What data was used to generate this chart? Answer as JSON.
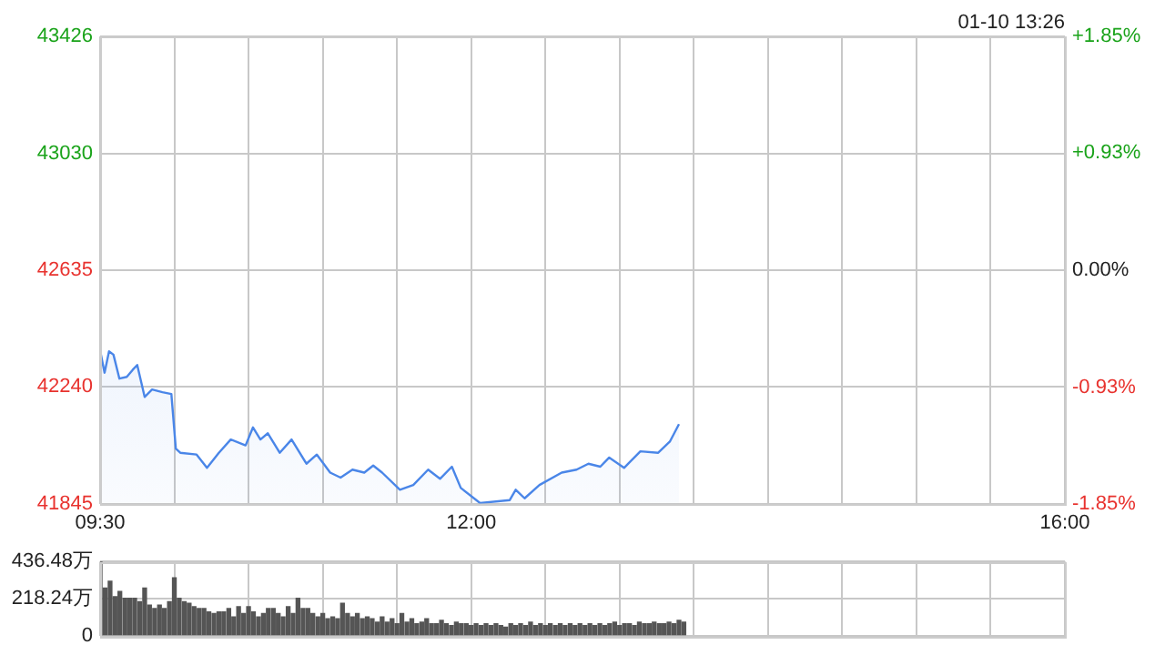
{
  "chart_data": [
    {
      "type": "area",
      "annotations": [
        "01-10 13:26"
      ],
      "x": [
        9.5,
        9.53,
        9.56,
        9.59,
        9.63,
        9.68,
        9.72,
        9.75,
        9.8,
        9.85,
        9.92,
        9.98,
        10.01,
        10.04,
        10.15,
        10.22,
        10.3,
        10.38,
        10.48,
        10.53,
        10.58,
        10.63,
        10.71,
        10.79,
        10.89,
        10.96,
        11.05,
        11.12,
        11.2,
        11.28,
        11.34,
        11.4,
        11.52,
        11.61,
        11.71,
        11.79,
        11.87,
        11.93,
        12.06,
        12.26,
        12.3,
        12.36,
        12.46,
        12.61,
        12.71,
        12.79,
        12.87,
        12.93,
        13.03,
        13.14,
        13.26,
        13.34,
        13.4
      ],
      "series": [
        {
          "color": "#4a86e8",
          "values": [
            42363,
            42288,
            42360,
            42349,
            42268,
            42274,
            42298,
            42314,
            42206,
            42231,
            42222,
            42216,
            42031,
            42017,
            42011,
            41966,
            42017,
            42062,
            42042,
            42103,
            42062,
            42083,
            42017,
            42062,
            41980,
            42011,
            41950,
            41933,
            41960,
            41950,
            41974,
            41950,
            41892,
            41908,
            41960,
            41929,
            41970,
            41898,
            41847,
            41857,
            41892,
            41863,
            41908,
            41950,
            41960,
            41980,
            41970,
            42001,
            41966,
            42022,
            42017,
            42056,
            42114
          ]
        }
      ],
      "xlim": [
        9.5,
        16
      ],
      "xticks": [
        {
          "value": 9.5,
          "label": "09:30"
        },
        {
          "value": 10,
          "label": null
        },
        {
          "value": 10.5,
          "label": null
        },
        {
          "value": 11,
          "label": null
        },
        {
          "value": 11.5,
          "label": null
        },
        {
          "value": 12,
          "label": "12:00"
        },
        {
          "value": 12.5,
          "label": null
        },
        {
          "value": 13,
          "label": null
        },
        {
          "value": 13.5,
          "label": null
        },
        {
          "value": 14,
          "label": null
        },
        {
          "value": 14.5,
          "label": null
        },
        {
          "value": 15,
          "label": null
        },
        {
          "value": 15.5,
          "label": null
        },
        {
          "value": 16,
          "label": "16:00"
        }
      ],
      "ylim": [
        41845,
        43426
      ],
      "yticks": [
        41845,
        42240,
        42635,
        43030,
        43426
      ],
      "y2lim": [
        -1.85,
        1.85
      ],
      "y2ticks": [
        {
          "value": -1.85,
          "label": "-1.85%"
        },
        {
          "value": -0.93,
          "label": "-0.93%"
        },
        {
          "value": 0,
          "label": "0.00%"
        },
        {
          "value": 0.93,
          "label": "+0.93%"
        },
        {
          "value": 1.85,
          "label": "+1.85%"
        }
      ],
      "grid": true,
      "legend": false,
      "marker": "none",
      "line_style": "solid"
    },
    {
      "type": "bar",
      "color": "#555555",
      "tick_labels": "y",
      "xlim": [
        9.5,
        16
      ],
      "xticks": [
        {
          "value": 9.5,
          "label": null
        },
        {
          "value": 10,
          "label": null
        },
        {
          "value": 10.5,
          "label": null
        },
        {
          "value": 11,
          "label": null
        },
        {
          "value": 11.5,
          "label": null
        },
        {
          "value": 12,
          "label": null
        },
        {
          "value": 12.5,
          "label": null
        },
        {
          "value": 13,
          "label": null
        },
        {
          "value": 13.5,
          "label": null
        },
        {
          "value": 14,
          "label": null
        },
        {
          "value": 14.5,
          "label": null
        },
        {
          "value": 15,
          "label": null
        },
        {
          "value": 15.5,
          "label": null
        },
        {
          "value": 16,
          "label": null
        }
      ],
      "ylim": [
        0,
        436.48
      ],
      "yticks": [
        0,
        {
          "value": 218.24,
          "label": "218.24万"
        },
        {
          "value": 436.48,
          "label": "436.48万"
        }
      ],
      "grid": true,
      "legend": false,
      "x": [
        9.5,
        9.533,
        9.567,
        9.6,
        9.633,
        9.667,
        9.7,
        9.733,
        9.767,
        9.8,
        9.833,
        9.867,
        9.9,
        9.933,
        9.967,
        10,
        10.033,
        10.067,
        10.1,
        10.133,
        10.167,
        10.2,
        10.233,
        10.267,
        10.3,
        10.333,
        10.367,
        10.4,
        10.433,
        10.467,
        10.5,
        10.533,
        10.567,
        10.6,
        10.633,
        10.667,
        10.7,
        10.733,
        10.767,
        10.8,
        10.833,
        10.867,
        10.9,
        10.933,
        10.967,
        11,
        11.033,
        11.067,
        11.1,
        11.133,
        11.167,
        11.2,
        11.233,
        11.267,
        11.3,
        11.333,
        11.367,
        11.4,
        11.433,
        11.467,
        11.5,
        11.533,
        11.567,
        11.6,
        11.633,
        11.667,
        11.7,
        11.733,
        11.767,
        11.8,
        11.833,
        11.867,
        11.9,
        11.933,
        11.967,
        12,
        12.033,
        12.067,
        12.1,
        12.133,
        12.167,
        12.2,
        12.233,
        12.267,
        12.3,
        12.333,
        12.367,
        12.4,
        12.433,
        12.467,
        12.5,
        12.533,
        12.567,
        12.6,
        12.633,
        12.667,
        12.7,
        12.733,
        12.767,
        12.8,
        12.833,
        12.867,
        12.9,
        12.933,
        12.967,
        13,
        13.033,
        13.067,
        13.1,
        13.133,
        13.167,
        13.2,
        13.233,
        13.267,
        13.3,
        13.333,
        13.367,
        13.4,
        13.433
      ],
      "values": [
        435,
        280,
        320,
        230,
        260,
        220,
        220,
        220,
        200,
        280,
        180,
        160,
        180,
        160,
        200,
        340,
        220,
        200,
        190,
        170,
        160,
        160,
        140,
        130,
        140,
        140,
        160,
        110,
        170,
        130,
        170,
        140,
        110,
        130,
        160,
        160,
        130,
        110,
        170,
        130,
        220,
        160,
        160,
        130,
        110,
        130,
        100,
        110,
        100,
        190,
        130,
        110,
        130,
        100,
        110,
        100,
        80,
        110,
        80,
        100,
        70,
        130,
        80,
        100,
        70,
        80,
        100,
        70,
        70,
        90,
        70,
        60,
        80,
        70,
        70,
        60,
        70,
        60,
        70,
        60,
        70,
        60,
        50,
        70,
        60,
        70,
        60,
        80,
        60,
        70,
        60,
        70,
        60,
        70,
        60,
        70,
        60,
        70,
        60,
        70,
        60,
        70,
        60,
        70,
        80,
        60,
        70,
        70,
        60,
        80,
        70,
        70,
        80,
        70,
        70,
        80,
        70,
        90,
        80
      ]
    }
  ]
}
